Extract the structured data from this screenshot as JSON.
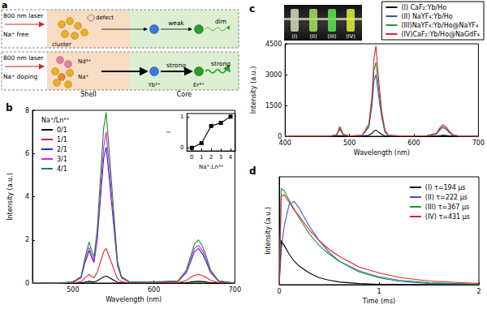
{
  "diagram": {
    "title": "a",
    "rows": [
      {
        "excitation": "800 nm laser",
        "condition": "Na⁺ free",
        "shell_labels": [
          "defect",
          "cluster"
        ],
        "transfer": "weak",
        "emission": "dim"
      },
      {
        "excitation": "800 nm laser",
        "condition": "Na⁺ doping",
        "shell_labels": [
          "Nd³⁺",
          "Na⁺"
        ],
        "core_labels": [
          "Yb³⁺",
          "Er³⁺"
        ],
        "transfer": "strong",
        "emission": "strong"
      }
    ],
    "regions": [
      "Shell",
      "Core"
    ]
  },
  "chart_data": [
    {
      "type": "line",
      "title": "b",
      "xlabel": "Wavelength (nm)",
      "ylabel": "Intensity (a.u.)",
      "x": [
        450,
        480,
        500,
        510,
        515,
        520,
        523,
        526,
        530,
        535,
        538,
        541,
        545,
        550,
        555,
        560,
        570,
        600,
        630,
        640,
        645,
        650,
        655,
        660,
        665,
        670,
        680,
        700
      ],
      "series": [
        {
          "name": "0/1",
          "color": "#000000",
          "values": [
            0,
            0,
            0,
            0.01,
            0.05,
            0.08,
            0.06,
            0.05,
            0.1,
            0.22,
            0.29,
            0.32,
            0.24,
            0.14,
            0.04,
            0.01,
            0,
            0,
            0,
            0.02,
            0.05,
            0.07,
            0.08,
            0.07,
            0.05,
            0.02,
            0,
            0
          ]
        },
        {
          "name": "1/1",
          "color": "#e8202a",
          "values": [
            0,
            0,
            0.01,
            0.06,
            0.25,
            0.4,
            0.3,
            0.25,
            0.5,
            1.1,
            1.45,
            1.6,
            1.2,
            0.7,
            0.2,
            0.06,
            0.01,
            0.01,
            0.02,
            0.12,
            0.25,
            0.36,
            0.4,
            0.34,
            0.25,
            0.12,
            0.02,
            0
          ]
        },
        {
          "name": "2/1",
          "color": "#2a2ae0",
          "values": [
            0,
            0,
            0.04,
            0.24,
            0.95,
            1.5,
            1.2,
            0.95,
            2.0,
            4.4,
            5.8,
            6.3,
            4.8,
            2.8,
            0.8,
            0.24,
            0.04,
            0.04,
            0.08,
            0.48,
            0.95,
            1.45,
            1.6,
            1.35,
            0.95,
            0.48,
            0.08,
            0
          ]
        },
        {
          "name": "3/1",
          "color": "#e020e0",
          "values": [
            0,
            0,
            0.04,
            0.26,
            1.05,
            1.65,
            1.3,
            1.05,
            2.2,
            4.8,
            6.3,
            7.0,
            5.3,
            3.1,
            0.9,
            0.26,
            0.04,
            0.04,
            0.09,
            0.53,
            1.05,
            1.6,
            1.75,
            1.5,
            1.05,
            0.53,
            0.09,
            0
          ]
        },
        {
          "name": "4/1",
          "color": "#1a8a2a",
          "values": [
            0,
            0,
            0.05,
            0.3,
            1.2,
            1.9,
            1.5,
            1.2,
            2.5,
            5.5,
            7.2,
            7.9,
            6.0,
            3.5,
            1.0,
            0.3,
            0.05,
            0.05,
            0.1,
            0.6,
            1.2,
            1.8,
            2.0,
            1.7,
            1.2,
            0.6,
            0.1,
            0
          ]
        }
      ],
      "xlim": [
        450,
        700
      ],
      "xticks": [
        500,
        600,
        700
      ],
      "ylim": [
        0,
        8
      ],
      "yticks": [
        0,
        2,
        4,
        6,
        8
      ],
      "legend": "upper left",
      "legend_title": "Na⁺/Ln³⁺",
      "grid": false
    },
    {
      "type": "line",
      "xlabel": "Na⁺:Ln³⁺",
      "ylabel": "I",
      "x": [
        0,
        1,
        2,
        3,
        4
      ],
      "series": [
        {
          "name": "I",
          "color": "#000000",
          "marker": "square",
          "values": [
            0,
            0.15,
            0.7,
            0.8,
            1
          ]
        }
      ],
      "xlim": [
        -0.5,
        4.5
      ],
      "xticks": [
        0,
        1,
        2,
        3,
        4
      ],
      "ylim": [
        -0.1,
        1.1
      ],
      "yticks": [
        0,
        1
      ],
      "grid": false
    },
    {
      "type": "line",
      "title": "c",
      "xlabel": "Wavelength (nm)",
      "ylabel": "Intensity (a.u.)",
      "x": [
        400,
        450,
        470,
        480,
        485,
        490,
        500,
        520,
        530,
        535,
        538,
        541,
        545,
        550,
        555,
        560,
        580,
        620,
        635,
        640,
        645,
        650,
        655,
        660,
        670,
        700
      ],
      "series": [
        {
          "name": "(I) CaF₂:Yb/Ho",
          "color": "#000000",
          "values": [
            0,
            0,
            0,
            5,
            30,
            5,
            0,
            5,
            50,
            150,
            260,
            300,
            200,
            90,
            20,
            5,
            0,
            2,
            10,
            30,
            45,
            35,
            20,
            5,
            0,
            0
          ]
        },
        {
          "name": "(II) NaYF₄:Yb/Ho",
          "color": "#3a50c8",
          "values": [
            0,
            0,
            8,
            60,
            350,
            70,
            8,
            40,
            450,
            1500,
            2700,
            3000,
            2000,
            900,
            200,
            40,
            8,
            20,
            100,
            300,
            420,
            330,
            180,
            60,
            5,
            0
          ]
        },
        {
          "name": "(III)NaYF₄:Yb/Ho@NaYF₄",
          "color": "#1a9a3a",
          "values": [
            0,
            0,
            10,
            70,
            400,
            90,
            10,
            50,
            500,
            1800,
            3200,
            3600,
            2400,
            1000,
            250,
            50,
            10,
            25,
            130,
            350,
            480,
            380,
            200,
            70,
            8,
            0
          ]
        },
        {
          "name": "(IV)CaF₂:Yb/Ho@NaGdF₄",
          "color": "#e8202a",
          "values": [
            0,
            0,
            10,
            80,
            480,
            100,
            10,
            60,
            600,
            2000,
            3800,
            4400,
            2800,
            1200,
            300,
            60,
            10,
            30,
            150,
            400,
            560,
            450,
            250,
            80,
            10,
            0
          ]
        }
      ],
      "xlim": [
        400,
        700
      ],
      "xticks": [
        400,
        500,
        600,
        700
      ],
      "ylim": [
        0,
        4500
      ],
      "yticks": [
        0,
        1500,
        3000,
        4500
      ],
      "legend": "top right",
      "annotations": [
        "(I)",
        "(II)",
        "(III)",
        "(IV)"
      ],
      "grid": false
    },
    {
      "type": "line",
      "title": "d",
      "xlabel": "Time (ms)",
      "ylabel": "Intensity (a.u.)",
      "x": [
        0,
        0.02,
        0.05,
        0.1,
        0.15,
        0.2,
        0.3,
        0.4,
        0.5,
        0.6,
        0.8,
        1,
        1.2,
        1.5,
        2
      ],
      "series": [
        {
          "name": "(I) τ=194 μs",
          "color": "#000000",
          "values": [
            0,
            0.45,
            0.4,
            0.31,
            0.24,
            0.19,
            0.12,
            0.07,
            0.045,
            0.028,
            0.011,
            0.004,
            0.002,
            0,
            0
          ]
        },
        {
          "name": "(II) τ=222 μs",
          "color": "#3a50c8",
          "values": [
            0,
            0.35,
            0.6,
            0.82,
            0.85,
            0.78,
            0.6,
            0.45,
            0.33,
            0.24,
            0.13,
            0.07,
            0.035,
            0.012,
            0.002
          ]
        },
        {
          "name": "(III) τ=367 μs",
          "color": "#1a9a3a",
          "values": [
            0,
            0.98,
            0.96,
            0.86,
            0.77,
            0.68,
            0.52,
            0.4,
            0.31,
            0.24,
            0.14,
            0.08,
            0.045,
            0.02,
            0.005
          ]
        },
        {
          "name": "(IV) τ=431 μs",
          "color": "#e8202a",
          "values": [
            0,
            0.9,
            0.92,
            0.84,
            0.76,
            0.7,
            0.56,
            0.45,
            0.36,
            0.29,
            0.18,
            0.12,
            0.075,
            0.037,
            0.012
          ]
        }
      ],
      "xlim": [
        0,
        2
      ],
      "xticks": [
        0,
        1,
        2
      ],
      "ylim": [
        0,
        1.1
      ],
      "tick_labels": "x",
      "legend": "upper right",
      "grid": false
    }
  ]
}
